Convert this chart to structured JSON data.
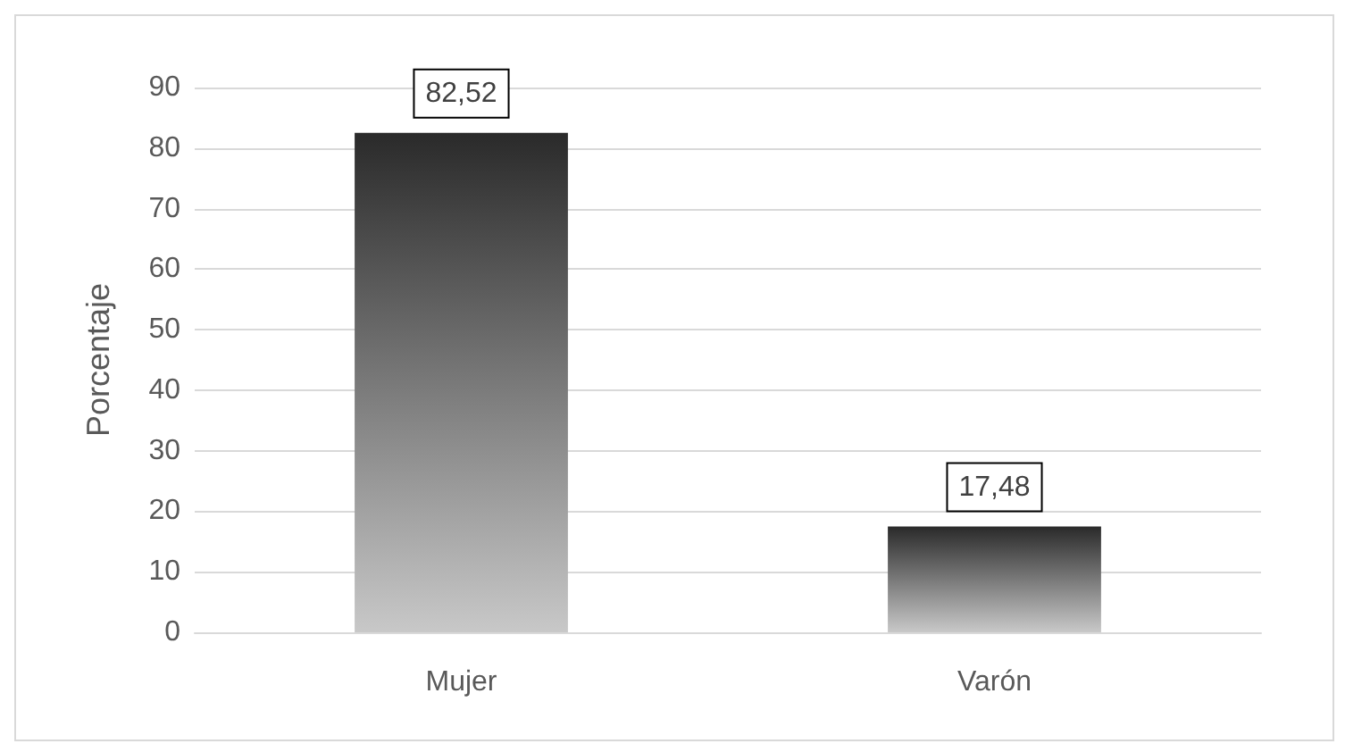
{
  "chart_data": {
    "type": "bar",
    "ylabel": "Porcentaje",
    "categories": [
      "Mujer",
      "Varón"
    ],
    "values": [
      82.52,
      17.48
    ],
    "value_labels": [
      "82,52",
      "17,48"
    ],
    "color": "#2a2a2a",
    "ylim": [
      0,
      90
    ],
    "yticks": [
      0,
      10,
      20,
      30,
      40,
      50,
      60,
      70,
      80,
      90
    ],
    "grid": "y"
  }
}
